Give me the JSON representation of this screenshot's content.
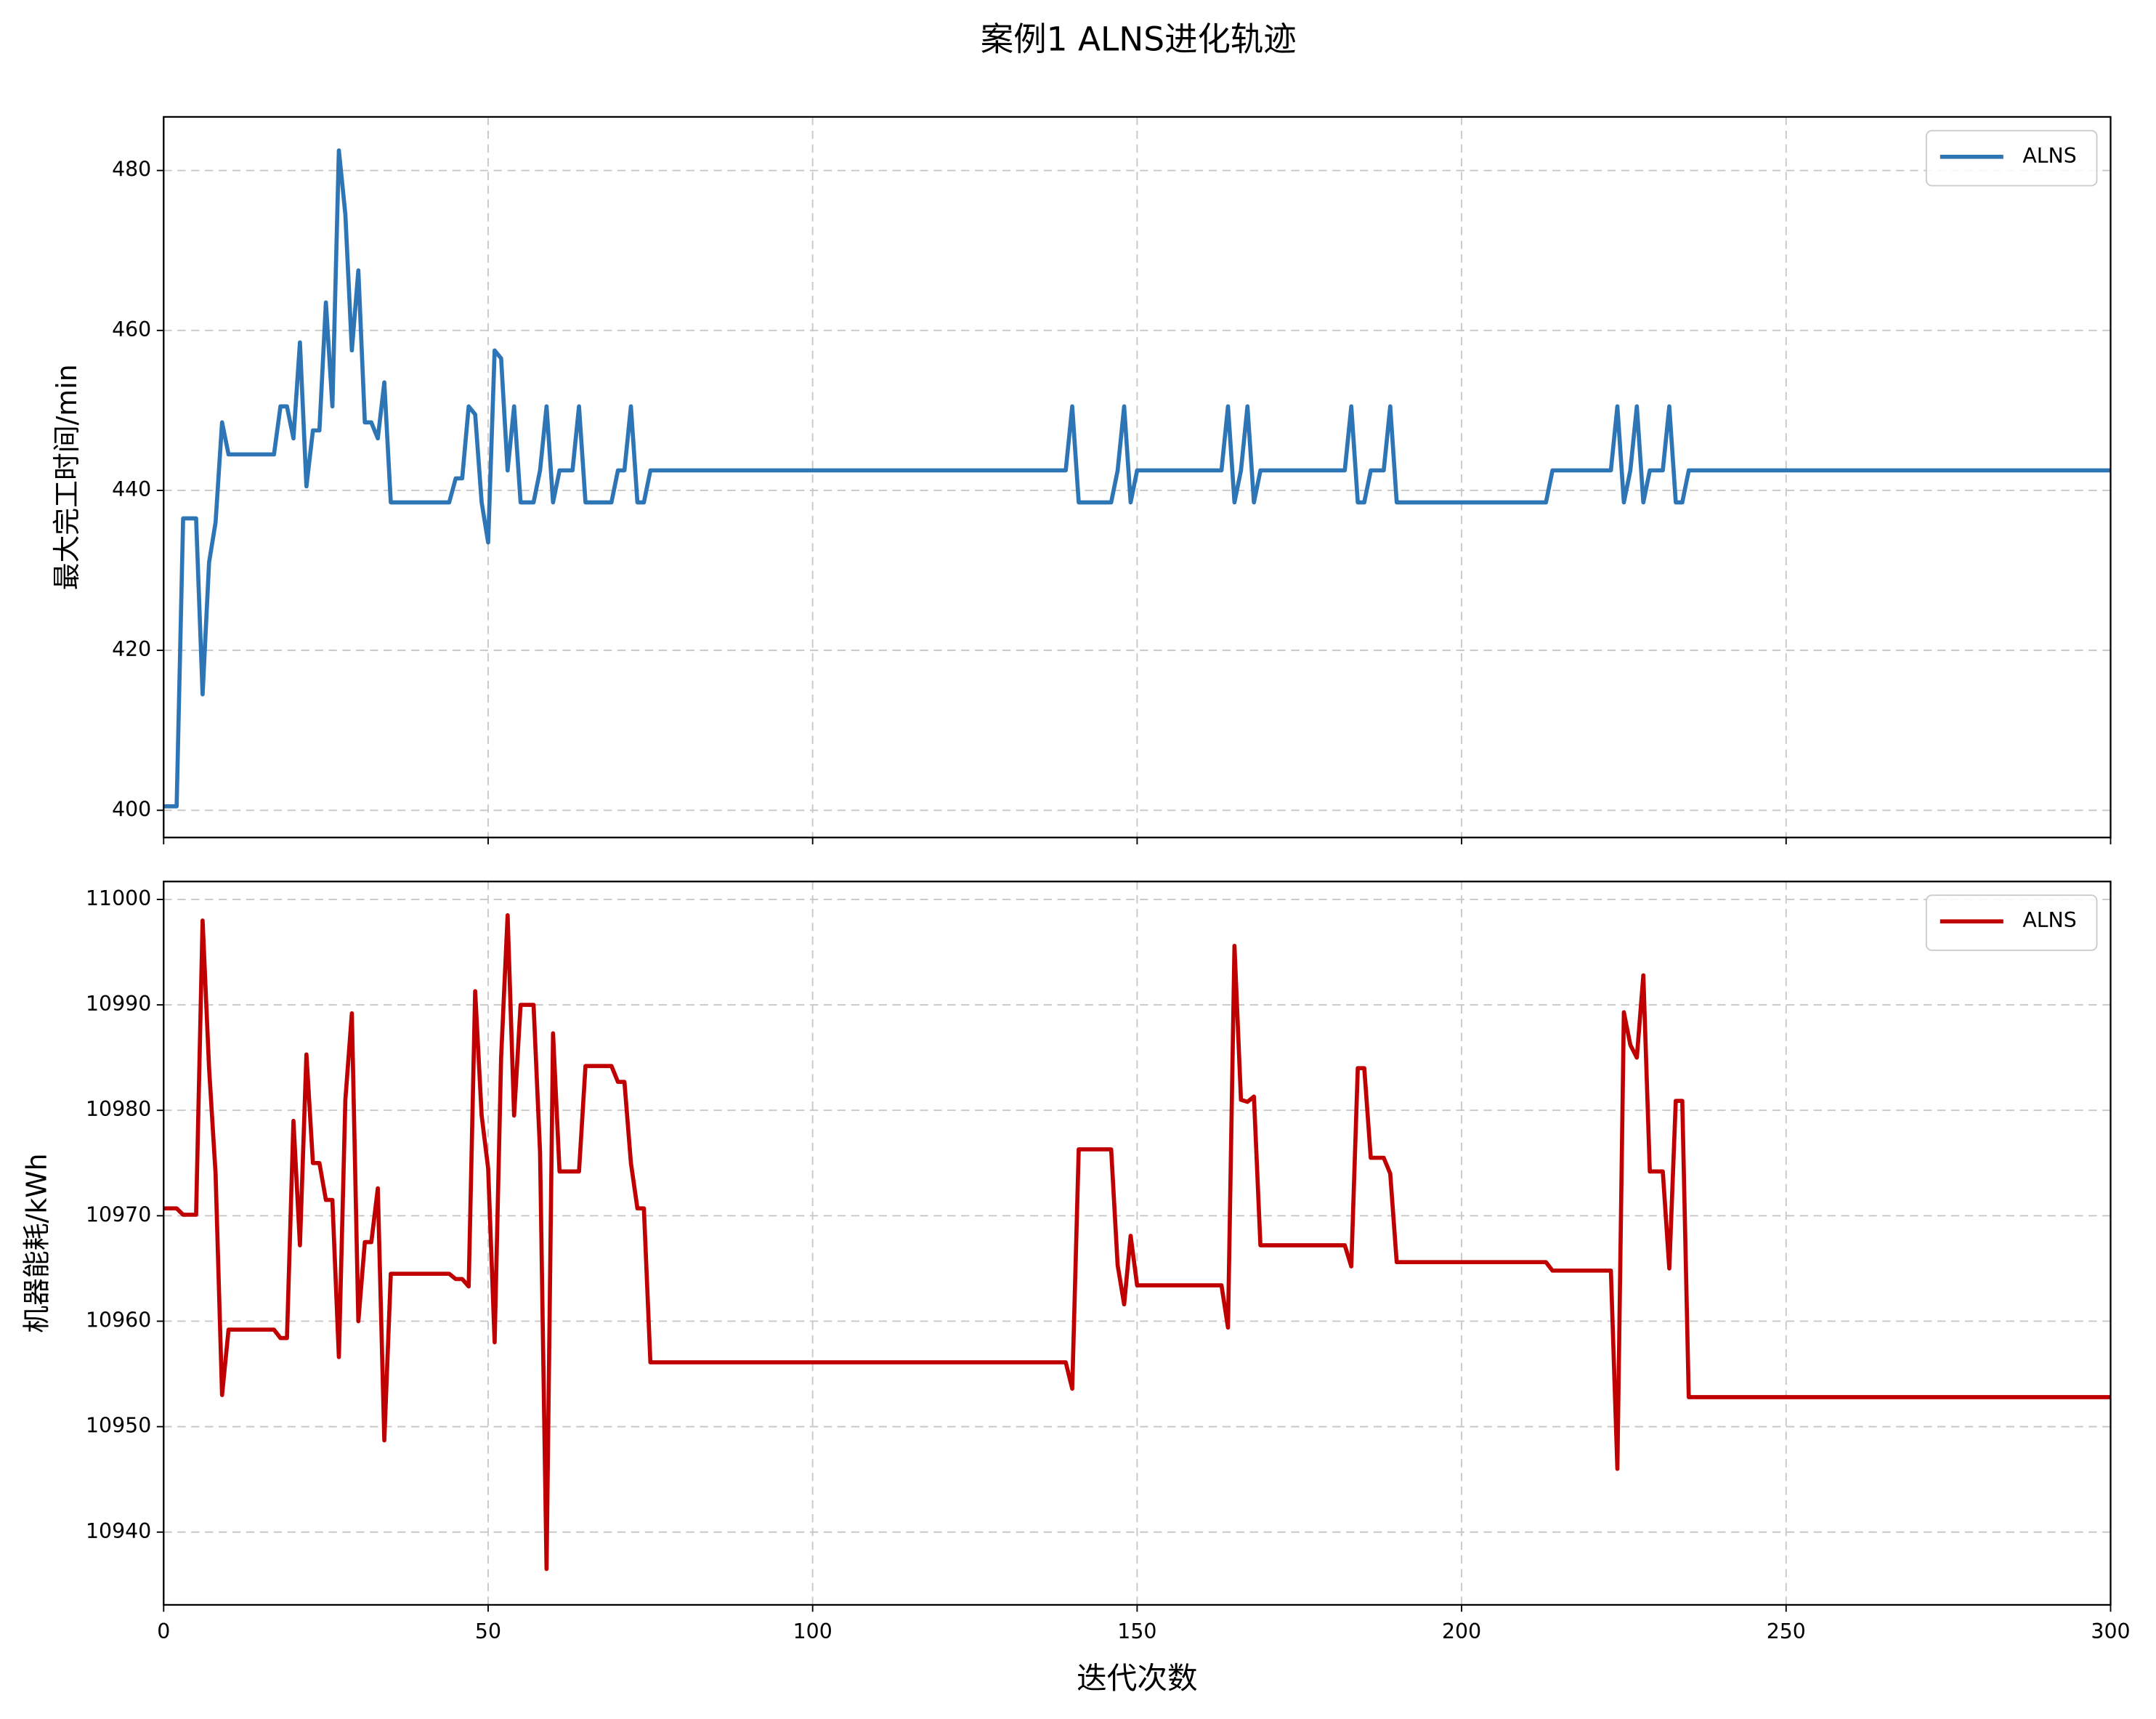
{
  "title": "案例1 ALNS进化轨迹",
  "chart_data": [
    {
      "type": "line",
      "ylabel": "最大完工时间/min",
      "xlim": [
        0,
        300
      ],
      "xticks": [
        0,
        50,
        100,
        150,
        200,
        250,
        300
      ],
      "ylim": [
        396.6,
        486.7
      ],
      "yticks": [
        400,
        420,
        440,
        460,
        480
      ],
      "grid": true,
      "legend": "upper right",
      "x": [
        0,
        2,
        3,
        5,
        6,
        7,
        8,
        9,
        10,
        17,
        18,
        19,
        20,
        21,
        22,
        23,
        24,
        25,
        26,
        27,
        28,
        29,
        30,
        31,
        32,
        33,
        34,
        35,
        44,
        45,
        46,
        47,
        48,
        49,
        50,
        51,
        52,
        53,
        54,
        55,
        57,
        58,
        59,
        60,
        61,
        63,
        64,
        65,
        69,
        70,
        71,
        72,
        73,
        74,
        75,
        139,
        140,
        141,
        146,
        147,
        148,
        149,
        150,
        163,
        164,
        165,
        166,
        167,
        168,
        169,
        182,
        183,
        184,
        185,
        186,
        188,
        189,
        190,
        213,
        214,
        223,
        224,
        225,
        226,
        227,
        228,
        229,
        231,
        232,
        233,
        234,
        235,
        300
      ],
      "series": [
        {
          "name": "ALNS",
          "color": "#2e75b6",
          "values": [
            400.5,
            400.5,
            436.5,
            436.5,
            414.5,
            431,
            436,
            448.5,
            444.5,
            444.5,
            450.5,
            450.5,
            446.5,
            458.5,
            440.5,
            447.5,
            447.5,
            463.5,
            450.5,
            482.5,
            474.5,
            457.5,
            467.5,
            448.5,
            448.5,
            446.5,
            453.5,
            438.5,
            438.5,
            441.5,
            441.5,
            450.5,
            449.5,
            438.5,
            433.5,
            457.5,
            456.5,
            442.5,
            450.5,
            438.5,
            438.5,
            442.5,
            450.5,
            438.5,
            442.5,
            442.5,
            450.5,
            438.5,
            438.5,
            442.5,
            442.5,
            450.5,
            438.5,
            438.5,
            442.5,
            442.5,
            450.5,
            438.5,
            438.5,
            442.5,
            450.5,
            438.5,
            442.5,
            442.5,
            450.5,
            438.5,
            442.5,
            450.5,
            438.5,
            442.5,
            442.5,
            450.5,
            438.5,
            438.5,
            442.5,
            442.5,
            450.5,
            438.5,
            438.5,
            442.5,
            442.5,
            450.5,
            438.5,
            442.5,
            450.5,
            438.5,
            442.5,
            442.5,
            450.5,
            438.5,
            438.5,
            442.5,
            442.5
          ]
        }
      ]
    },
    {
      "type": "line",
      "ylabel": "机器能耗/kWh",
      "xlabel": "迭代次数",
      "xlim": [
        0,
        300
      ],
      "xticks": [
        0,
        50,
        100,
        150,
        200,
        250,
        300
      ],
      "ylim": [
        10933.1,
        11001.7
      ],
      "yticks": [
        10940,
        10950,
        10960,
        10970,
        10980,
        10990,
        11000
      ],
      "grid": true,
      "legend": "upper right",
      "x": [
        0,
        2,
        3,
        5,
        6,
        7,
        8,
        9,
        10,
        17,
        18,
        19,
        20,
        21,
        22,
        23,
        24,
        25,
        26,
        27,
        28,
        29,
        30,
        31,
        32,
        33,
        34,
        35,
        44,
        45,
        46,
        47,
        48,
        49,
        50,
        51,
        52,
        53,
        54,
        55,
        57,
        58,
        59,
        60,
        61,
        64,
        65,
        69,
        70,
        71,
        72,
        73,
        74,
        75,
        139,
        140,
        141,
        146,
        147,
        148,
        149,
        150,
        163,
        164,
        165,
        166,
        167,
        168,
        169,
        182,
        183,
        184,
        185,
        186,
        188,
        189,
        190,
        213,
        214,
        223,
        224,
        225,
        226,
        227,
        228,
        229,
        231,
        232,
        233,
        234,
        235,
        300
      ],
      "series": [
        {
          "name": "ALNS",
          "color": "#c00000",
          "values": [
            10970.7,
            10970.7,
            10970.1,
            10970.1,
            10998,
            10984,
            10974,
            10953,
            10959.2,
            10959.2,
            10958.4,
            10958.4,
            10979,
            10967.2,
            10985.3,
            10975,
            10975,
            10971.5,
            10971.5,
            10956.6,
            10981,
            10989.2,
            10960,
            10967.5,
            10967.5,
            10972.6,
            10948.7,
            10964.5,
            10964.5,
            10964,
            10964,
            10963.3,
            10991.3,
            10979.5,
            10974.5,
            10958,
            10985,
            10998.5,
            10979.5,
            10990,
            10990,
            10976,
            10936.5,
            10987.3,
            10974.2,
            10974.2,
            10984.2,
            10984.2,
            10982.7,
            10982.7,
            10975,
            10970.7,
            10970.7,
            10956.1,
            10956.1,
            10953.6,
            10976.3,
            10976.3,
            10965.3,
            10961.6,
            10968.1,
            10963.4,
            10963.4,
            10959.4,
            10995.6,
            10981,
            10980.8,
            10981.3,
            10967.2,
            10967.2,
            10965.2,
            10984,
            10984,
            10975.5,
            10975.5,
            10974,
            10965.6,
            10965.6,
            10964.8,
            10964.8,
            10946,
            10989.3,
            10986.2,
            10985,
            10992.8,
            10974.2,
            10974.2,
            10965,
            10980.9,
            10980.9,
            10952.8,
            10952.8
          ]
        }
      ]
    }
  ]
}
